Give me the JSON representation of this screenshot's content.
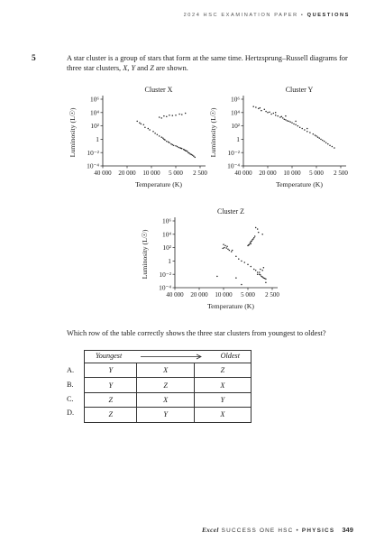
{
  "header": {
    "year_title": "2024 HSC EXAMINATION PAPER",
    "bullet": "•",
    "section": "QUESTIONS"
  },
  "question": {
    "number": "5",
    "intro_parts": [
      "A star cluster is a group of stars that form at the same time. Hertzsprung–Russell diagrams for three star clusters, ",
      "X",
      ", ",
      "Y",
      " and ",
      "Z",
      " are shown."
    ],
    "ask": "Which row of the table correctly shows the three star clusters from youngest to oldest?"
  },
  "chart_data": [
    {
      "type": "scatter",
      "title": "Cluster X",
      "xlabel": "Temperature (K)",
      "ylabel": "Luminosity (L☉)",
      "x_ticks": [
        "40 000",
        "20 000",
        "10 000",
        "5 000",
        "2 500"
      ],
      "y_ticks": [
        "10⁶",
        "10⁴",
        "10²",
        "1",
        "10⁻²",
        "10⁻⁴"
      ],
      "x_scale": "log, reversed",
      "y_scale": "log",
      "x_range": [
        40000,
        2500
      ],
      "y_range": [
        0.0001,
        1000000
      ],
      "points": [
        [
          15000,
          500
        ],
        [
          14000,
          300
        ],
        [
          13500,
          200
        ],
        [
          12500,
          150
        ],
        [
          12000,
          60
        ],
        [
          11000,
          40
        ],
        [
          10500,
          25
        ],
        [
          9500,
          15
        ],
        [
          9000,
          8
        ],
        [
          8500,
          5
        ],
        [
          8000,
          3
        ],
        [
          7500,
          2
        ],
        [
          7200,
          1.5
        ],
        [
          7000,
          1
        ],
        [
          6800,
          0.8
        ],
        [
          6500,
          0.5
        ],
        [
          6200,
          0.4
        ],
        [
          6000,
          0.3
        ],
        [
          5700,
          0.2
        ],
        [
          5500,
          0.15
        ],
        [
          5300,
          0.12
        ],
        [
          5000,
          0.1
        ],
        [
          4800,
          0.08
        ],
        [
          4600,
          0.06
        ],
        [
          4400,
          0.05
        ],
        [
          4200,
          0.04
        ],
        [
          4000,
          0.03
        ],
        [
          3800,
          0.02
        ],
        [
          3600,
          0.015
        ],
        [
          3500,
          0.01
        ],
        [
          3400,
          0.008
        ],
        [
          3300,
          0.006
        ],
        [
          3200,
          0.005
        ],
        [
          3100,
          0.004
        ],
        [
          3000,
          0.003
        ],
        [
          2900,
          0.002
        ],
        [
          3900,
          0.025
        ],
        [
          4300,
          0.045
        ],
        [
          3700,
          0.018
        ],
        [
          8000,
          2000
        ],
        [
          7000,
          3000
        ],
        [
          6500,
          2500
        ],
        [
          6000,
          4000
        ],
        [
          5500,
          3500
        ],
        [
          5000,
          4000
        ],
        [
          4500,
          6000
        ],
        [
          4200,
          5000
        ],
        [
          3800,
          8000
        ],
        [
          7500,
          1500
        ]
      ]
    },
    {
      "type": "scatter",
      "title": "Cluster Y",
      "xlabel": "Temperature (K)",
      "ylabel": "Luminosity (L☉)",
      "x_ticks": [
        "40 000",
        "20 000",
        "10 000",
        "5 000",
        "2 500"
      ],
      "y_ticks": [
        "10⁶",
        "10⁴",
        "10²",
        "1",
        "10⁻²",
        "10⁻⁴"
      ],
      "x_scale": "log, reversed",
      "y_scale": "log",
      "x_range": [
        40000,
        2500
      ],
      "y_range": [
        0.0001,
        1000000
      ],
      "points": [
        [
          30000,
          80000
        ],
        [
          28000,
          60000
        ],
        [
          26000,
          40000
        ],
        [
          25000,
          50000
        ],
        [
          24000,
          20000
        ],
        [
          22000,
          30000
        ],
        [
          21000,
          15000
        ],
        [
          20000,
          10000
        ],
        [
          19000,
          12000
        ],
        [
          18000,
          6000
        ],
        [
          17000,
          8000
        ],
        [
          16000,
          4000
        ],
        [
          15000,
          3000
        ],
        [
          14000,
          2000
        ],
        [
          13500,
          2500
        ],
        [
          13000,
          1500
        ],
        [
          12500,
          1000
        ],
        [
          12000,
          800
        ],
        [
          11500,
          600
        ],
        [
          11000,
          500
        ],
        [
          10500,
          400
        ],
        [
          10000,
          300
        ],
        [
          9500,
          200
        ],
        [
          9000,
          150
        ],
        [
          8500,
          100
        ],
        [
          8000,
          60
        ],
        [
          7500,
          40
        ],
        [
          7000,
          25
        ],
        [
          6500,
          15
        ],
        [
          6000,
          10
        ],
        [
          5500,
          6
        ],
        [
          5200,
          4
        ],
        [
          5000,
          3
        ],
        [
          4800,
          2
        ],
        [
          4600,
          1.5
        ],
        [
          4400,
          1
        ],
        [
          4200,
          0.7
        ],
        [
          4000,
          0.5
        ],
        [
          3800,
          0.3
        ],
        [
          3600,
          0.2
        ],
        [
          3400,
          0.12
        ],
        [
          3200,
          0.08
        ],
        [
          3000,
          0.05
        ],
        [
          16000,
          10000
        ],
        [
          12000,
          3000
        ],
        [
          9000,
          500
        ],
        [
          6500,
          40
        ]
      ]
    },
    {
      "type": "scatter",
      "title": "Cluster Z",
      "xlabel": "Temperature (K)",
      "ylabel": "Luminosity (L☉)",
      "x_ticks": [
        "40 000",
        "20 000",
        "10 000",
        "5 000",
        "2 500"
      ],
      "y_ticks": [
        "10⁶",
        "10⁴",
        "10²",
        "1",
        "10⁻²",
        "10⁻⁴"
      ],
      "x_scale": "log, reversed",
      "y_scale": "log",
      "x_range": [
        40000,
        2500
      ],
      "y_range": [
        0.0001,
        1000000
      ],
      "points": [
        [
          10000,
          300
        ],
        [
          9500,
          200
        ],
        [
          9000,
          150
        ],
        [
          9800,
          100
        ],
        [
          8800,
          60
        ],
        [
          8500,
          40
        ],
        [
          8000,
          25
        ],
        [
          7800,
          40
        ],
        [
          10200,
          80
        ],
        [
          9200,
          90
        ],
        [
          7000,
          5
        ],
        [
          6500,
          2
        ],
        [
          6000,
          1
        ],
        [
          5500,
          0.6
        ],
        [
          5000,
          0.3
        ],
        [
          4600,
          0.15
        ],
        [
          4200,
          0.06
        ],
        [
          4000,
          0.04
        ],
        [
          3800,
          0.02
        ],
        [
          3600,
          0.01
        ],
        [
          3400,
          0.005
        ],
        [
          3200,
          0.003
        ],
        [
          3000,
          0.002
        ],
        [
          3100,
          0.0025
        ],
        [
          3300,
          0.004
        ],
        [
          3500,
          0.008
        ],
        [
          5000,
          200
        ],
        [
          4800,
          300
        ],
        [
          4700,
          500
        ],
        [
          4600,
          800
        ],
        [
          4500,
          1000
        ],
        [
          4400,
          1500
        ],
        [
          4300,
          2000
        ],
        [
          4200,
          3000
        ],
        [
          4600,
          400
        ],
        [
          4900,
          250
        ],
        [
          4100,
          5000
        ],
        [
          3800,
          60000
        ],
        [
          3700,
          20000
        ],
        [
          4000,
          100000
        ],
        [
          3300,
          10000
        ],
        [
          3500,
          0.06
        ],
        [
          3300,
          0.04
        ],
        [
          3600,
          0.02
        ],
        [
          3800,
          0.01
        ],
        [
          3200,
          0.1
        ],
        [
          12000,
          0.005
        ],
        [
          6000,
          0.0003
        ],
        [
          3000,
          0.0006
        ],
        [
          7000,
          0.003
        ]
      ]
    }
  ],
  "table": {
    "youngest": "Youngest",
    "oldest": "Oldest",
    "rows": [
      {
        "label": "A.",
        "cells": [
          "Y",
          "X",
          "Z"
        ]
      },
      {
        "label": "B.",
        "cells": [
          "Y",
          "Z",
          "X"
        ]
      },
      {
        "label": "C.",
        "cells": [
          "Z",
          "X",
          "Y"
        ]
      },
      {
        "label": "D.",
        "cells": [
          "Z",
          "Y",
          "X"
        ]
      }
    ]
  },
  "footer": {
    "brand": "Excel",
    "series": "SUCCESS ONE HSC",
    "bullet": "•",
    "subject": "PHYSICS",
    "page": "349"
  }
}
